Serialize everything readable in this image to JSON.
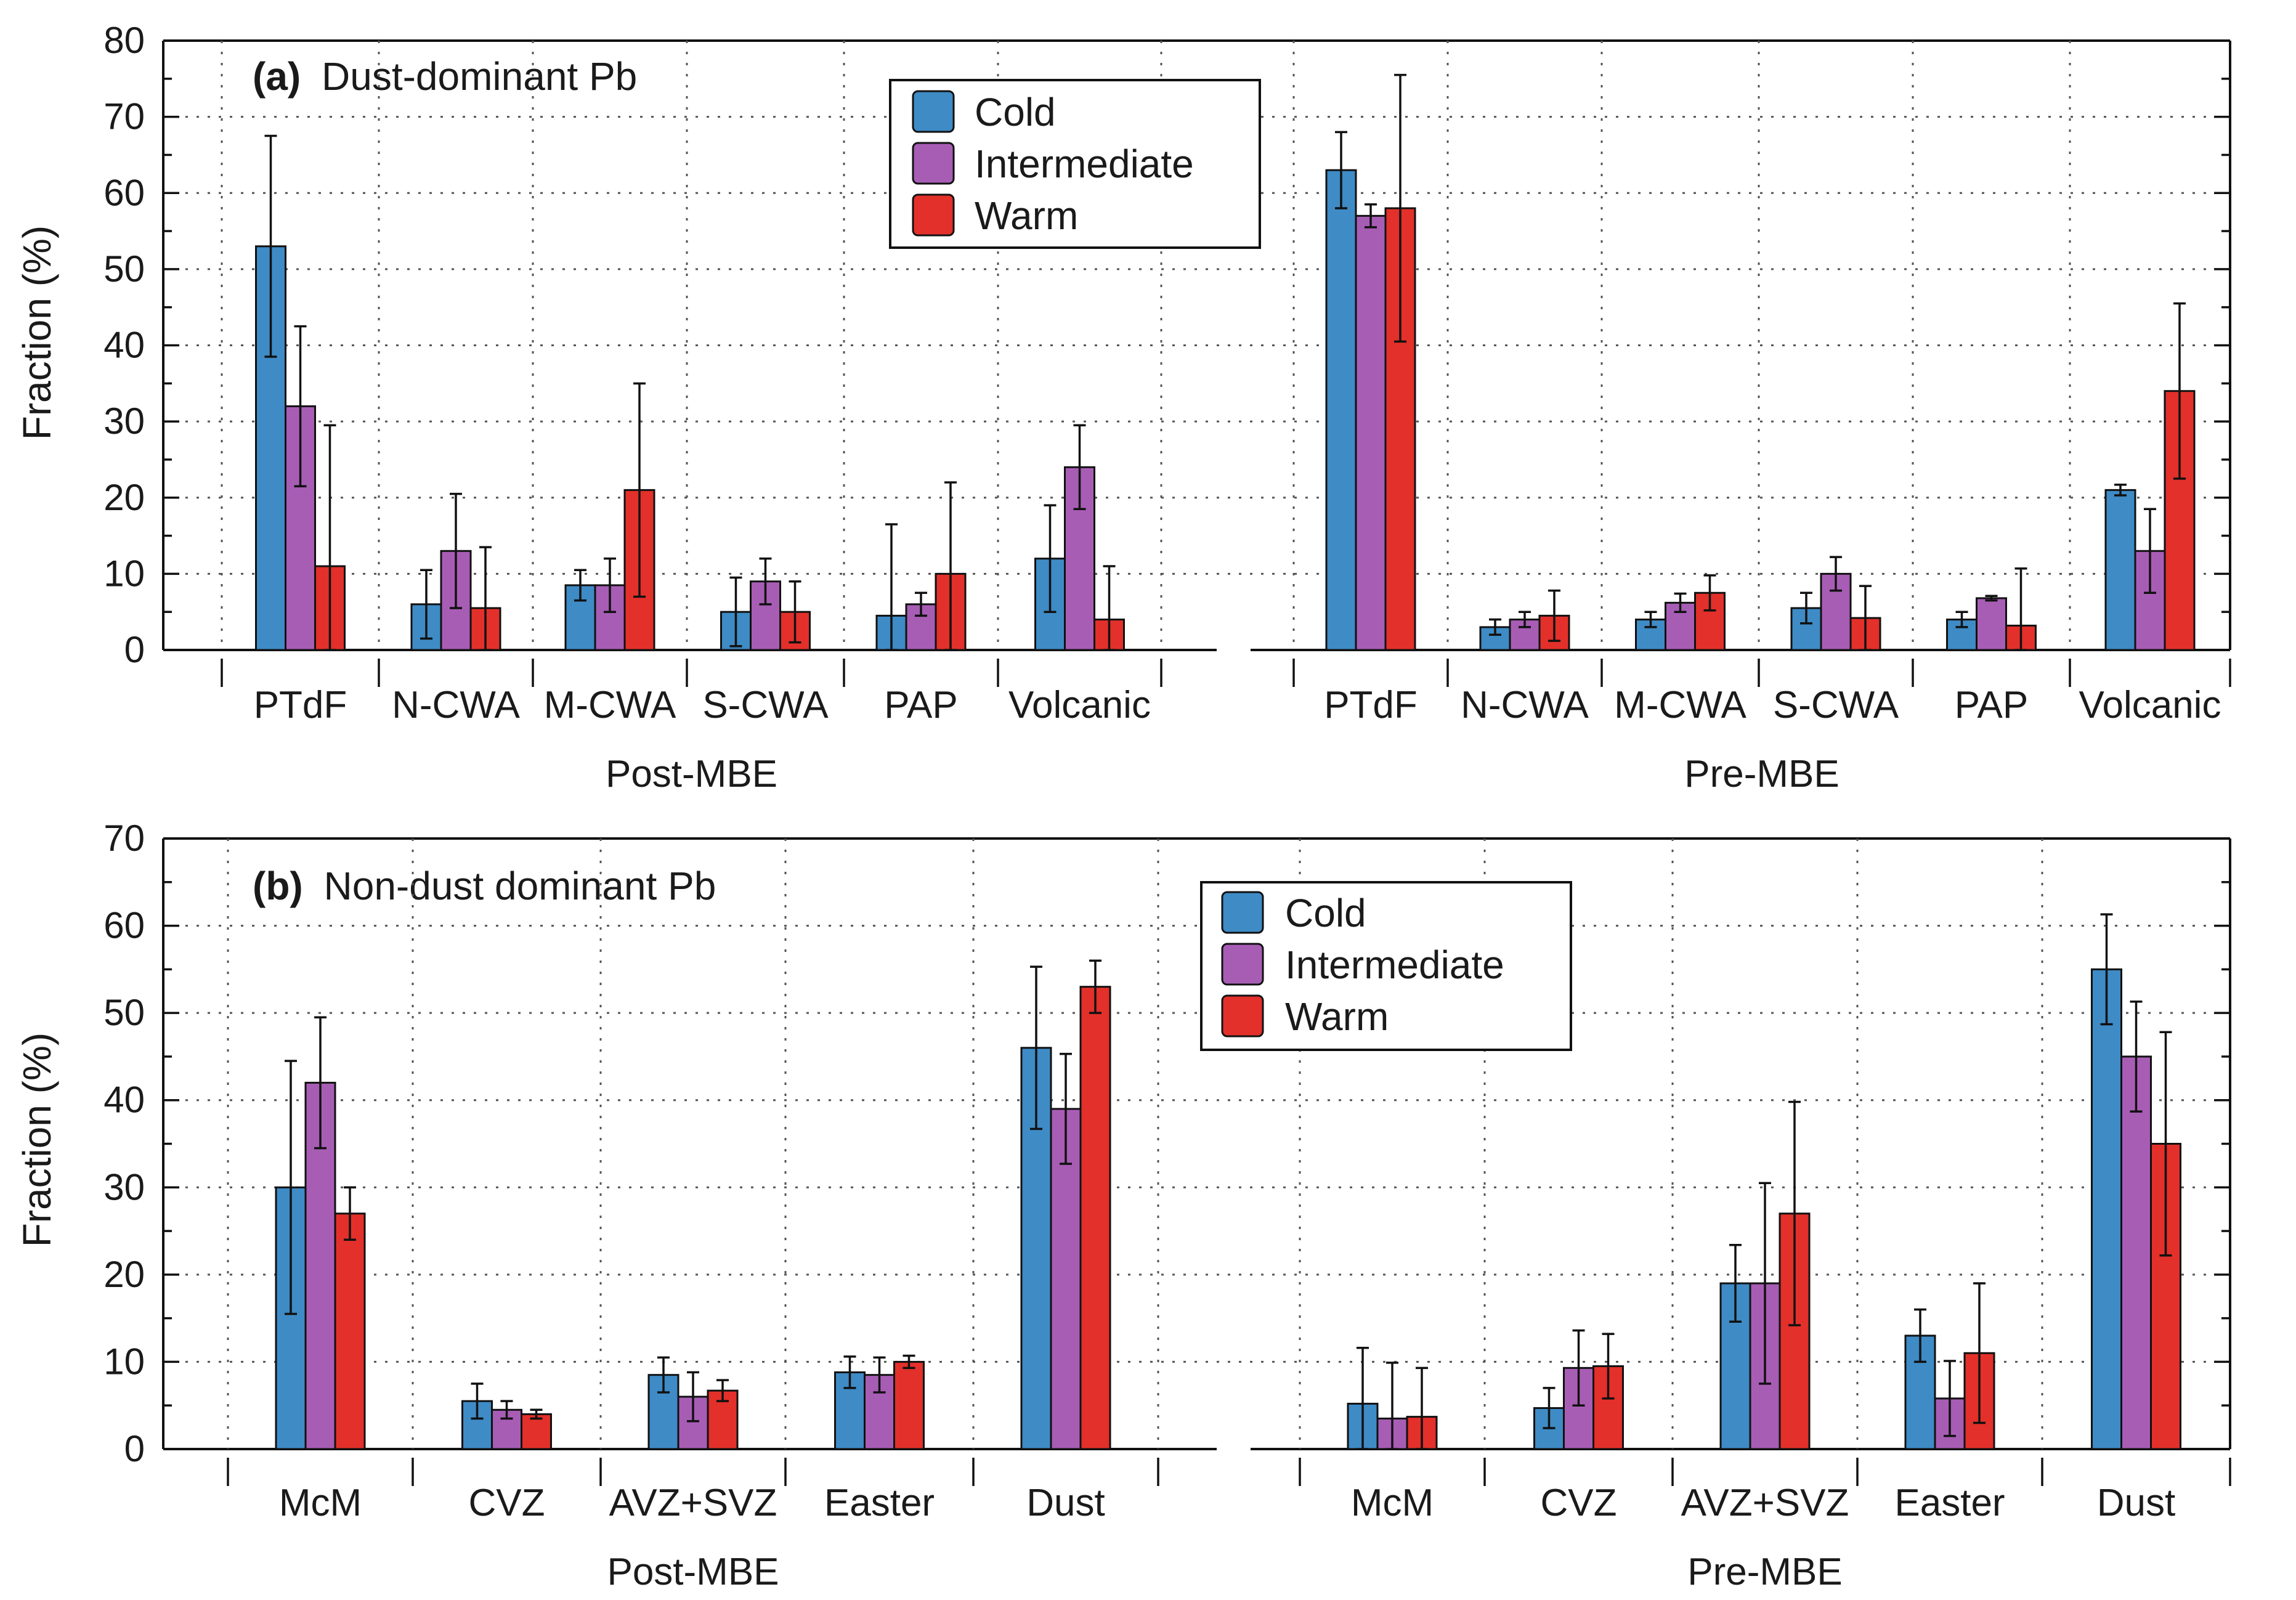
{
  "colors": {
    "cold": "#3e8bc6",
    "intermediate": "#a85db5",
    "warm": "#e3302a",
    "axis": "#111111"
  },
  "series_names": [
    "Cold",
    "Intermediate",
    "Warm"
  ],
  "chart_data": [
    {
      "type": "bar",
      "panel_label": "(a)",
      "title": "Dust-dominant Pb",
      "ylabel": "Fraction (%)",
      "ylim": [
        0,
        80
      ],
      "yticks": [
        0,
        10,
        20,
        30,
        40,
        50,
        60,
        70,
        80
      ],
      "legend_position": "top-center",
      "groups": [
        {
          "name": "Post-MBE",
          "categories": [
            "PTdF",
            "N-CWA",
            "M-CWA",
            "S-CWA",
            "PAP",
            "Volcanic"
          ],
          "series": [
            {
              "name": "Cold",
              "values": [
                53,
                6,
                8.5,
                5,
                4.5,
                12
              ],
              "errors": [
                14.5,
                4.5,
                2,
                4.5,
                12,
                7
              ]
            },
            {
              "name": "Intermediate",
              "values": [
                32,
                13,
                8.5,
                9,
                6,
                24
              ],
              "errors": [
                10.5,
                7.5,
                3.5,
                3,
                1.5,
                5.5
              ]
            },
            {
              "name": "Warm",
              "values": [
                11,
                5.5,
                21,
                5,
                10,
                4
              ],
              "errors": [
                18.5,
                8,
                14,
                4,
                12,
                7
              ]
            }
          ]
        },
        {
          "name": "Pre-MBE",
          "categories": [
            "PTdF",
            "N-CWA",
            "M-CWA",
            "S-CWA",
            "PAP",
            "Volcanic"
          ],
          "series": [
            {
              "name": "Cold",
              "values": [
                63,
                3,
                4,
                5.5,
                4,
                21
              ],
              "errors": [
                5,
                1,
                1,
                2,
                1,
                0.7
              ]
            },
            {
              "name": "Intermediate",
              "values": [
                57,
                4,
                6.2,
                10,
                6.8,
                13
              ],
              "errors": [
                1.5,
                1,
                1.2,
                2.2,
                0.3,
                5.5
              ]
            },
            {
              "name": "Warm",
              "values": [
                58,
                4.5,
                7.5,
                4.2,
                3.2,
                34
              ],
              "errors": [
                17.5,
                3.3,
                2.3,
                4.2,
                7.5,
                11.5
              ]
            }
          ]
        }
      ]
    },
    {
      "type": "bar",
      "panel_label": "(b)",
      "title": "Non-dust dominant Pb",
      "ylabel": "Fraction (%)",
      "ylim": [
        0,
        70
      ],
      "yticks": [
        0,
        10,
        20,
        30,
        40,
        50,
        60,
        70
      ],
      "legend_position": "top-center",
      "groups": [
        {
          "name": "Post-MBE",
          "categories": [
            "McM",
            "CVZ",
            "AVZ+SVZ",
            "Easter",
            "Dust"
          ],
          "series": [
            {
              "name": "Cold",
              "values": [
                30,
                5.5,
                8.5,
                8.8,
                46
              ],
              "errors": [
                14.5,
                2,
                2,
                1.8,
                9.3
              ]
            },
            {
              "name": "Intermediate",
              "values": [
                42,
                4.5,
                6,
                8.5,
                39
              ],
              "errors": [
                7.5,
                1,
                2.8,
                2,
                6.3
              ]
            },
            {
              "name": "Warm",
              "values": [
                27,
                4,
                6.7,
                10,
                53
              ],
              "errors": [
                3,
                0.5,
                1.2,
                0.7,
                3
              ]
            }
          ]
        },
        {
          "name": "Pre-MBE",
          "categories": [
            "McM",
            "CVZ",
            "AVZ+SVZ",
            "Easter",
            "Dust"
          ],
          "series": [
            {
              "name": "Cold",
              "values": [
                5.2,
                4.7,
                19,
                13,
                55
              ],
              "errors": [
                6.4,
                2.3,
                4.4,
                3,
                6.3
              ]
            },
            {
              "name": "Intermediate",
              "values": [
                3.5,
                9.3,
                19,
                5.8,
                45
              ],
              "errors": [
                6.4,
                4.3,
                11.5,
                4.3,
                6.3
              ]
            },
            {
              "name": "Warm",
              "values": [
                3.7,
                9.5,
                27,
                11,
                35
              ],
              "errors": [
                5.6,
                3.7,
                12.8,
                8,
                12.8
              ]
            }
          ]
        }
      ]
    }
  ]
}
